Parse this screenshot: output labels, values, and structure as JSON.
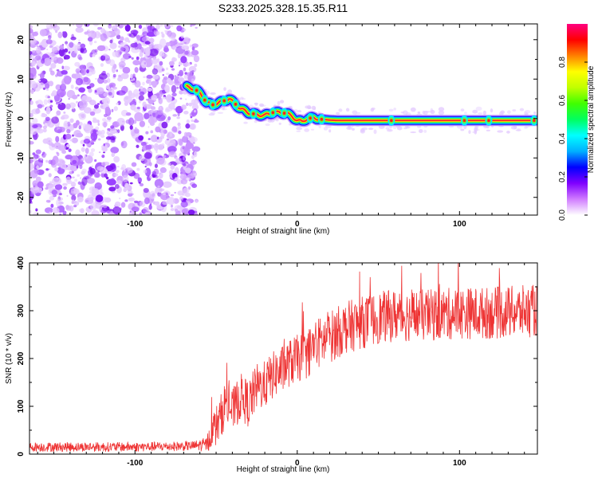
{
  "figure": {
    "title": "S233.2025.328.15.35.R11"
  },
  "chart_data": [
    {
      "type": "heatmap",
      "title": "S233.2025.328.15.35.R11",
      "xlabel": "Height of straight line (km)",
      "ylabel": "Frequency (Hz)",
      "xlim": [
        -165,
        148
      ],
      "ylim": [
        -24.5,
        24
      ],
      "x_ticks": [
        -100,
        0,
        100
      ],
      "y_ticks": [
        -20,
        -10,
        0,
        10,
        20
      ],
      "noise_region_x": [
        -165,
        -65
      ],
      "ridge": {
        "x": [
          -68,
          -63,
          -59,
          -56,
          -52,
          -48,
          -45,
          -42,
          -39,
          -35,
          -30,
          -25,
          -20,
          -15,
          -10,
          -6,
          -3,
          0,
          3,
          6,
          10,
          15,
          20,
          25,
          40,
          60,
          80,
          100,
          120,
          148
        ],
        "y": [
          8,
          7.5,
          6,
          4,
          3.5,
          4,
          4.5,
          5,
          4,
          2.5,
          1.5,
          1,
          0.8,
          1.5,
          1.5,
          1.2,
          0.5,
          -0.5,
          -0.8,
          0,
          0.2,
          -0.2,
          -0.4,
          -0.5,
          -0.5,
          -0.5,
          -0.5,
          -0.5,
          -0.5,
          -0.5
        ]
      },
      "colorbar": {
        "label": "Normalized spectral amplitude",
        "range": [
          0.0,
          1.0
        ],
        "ticks": [
          "0.0",
          "0.2",
          "0.4",
          "0.6",
          "0.8"
        ],
        "colors": [
          "#ffffff",
          "#d07cff",
          "#8000ff",
          "#0000ff",
          "#00b0ff",
          "#00ffff",
          "#00ff60",
          "#40ff00",
          "#c0ff00",
          "#ffff00",
          "#ff8000",
          "#ff0000",
          "#ff0080"
        ]
      }
    },
    {
      "type": "line",
      "xlabel": "Height of straight line (km)",
      "ylabel": "SNR (10 * v/v)",
      "xlim": [
        -165,
        148
      ],
      "ylim": [
        0,
        400
      ],
      "x_ticks": [
        -100,
        0,
        100
      ],
      "y_ticks": [
        0,
        100,
        200,
        300,
        400
      ],
      "series": [
        {
          "name": "SNR",
          "color": "#ee3333",
          "x": [
            -165,
            -140,
            -120,
            -100,
            -80,
            -65,
            -56,
            -52,
            -48,
            -44,
            -40,
            -35,
            -30,
            -25,
            -20,
            -15,
            -10,
            -5,
            0,
            5,
            10,
            15,
            20,
            25,
            30,
            40,
            50,
            60,
            80,
            100,
            120,
            148
          ],
          "y": [
            15,
            15,
            15,
            15,
            16,
            17,
            20,
            50,
            70,
            110,
            90,
            120,
            105,
            140,
            145,
            165,
            175,
            190,
            200,
            205,
            225,
            235,
            245,
            255,
            265,
            275,
            285,
            290,
            290,
            295,
            295,
            300
          ],
          "noise_amplitude": [
            10,
            10,
            10,
            10,
            10,
            10,
            15,
            40,
            45,
            50,
            45,
            50,
            50,
            50,
            50,
            50,
            50,
            50,
            50,
            50,
            55,
            55,
            55,
            55,
            55,
            55,
            55,
            55,
            55,
            55,
            55,
            55
          ]
        }
      ]
    }
  ]
}
